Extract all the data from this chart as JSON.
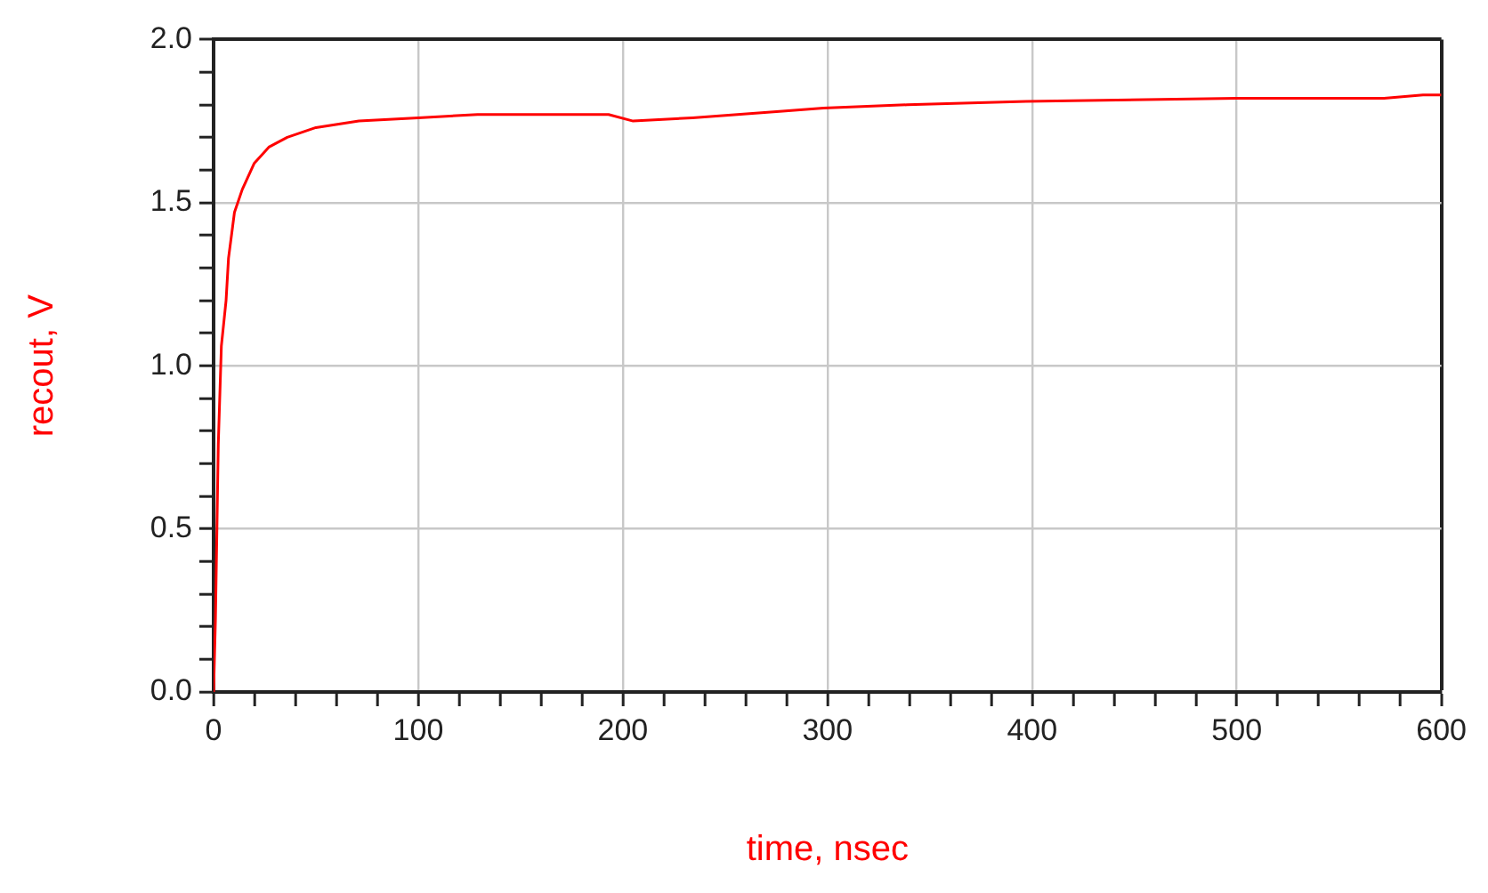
{
  "chart_data": {
    "type": "line",
    "xlabel": "time, nsec",
    "ylabel": "recout, V",
    "x": [
      0,
      0.9,
      2.3,
      3.8,
      6.1,
      7.3,
      10.2,
      14,
      19.8,
      27,
      36,
      50,
      71,
      100,
      129,
      150,
      193,
      205,
      234,
      278,
      298,
      339,
      397,
      500,
      572,
      591,
      600
    ],
    "series": [
      {
        "color": "#ff0000",
        "values": [
          0,
          0.22,
          0.76,
          1.06,
          1.2,
          1.33,
          1.47,
          1.54,
          1.62,
          1.67,
          1.7,
          1.73,
          1.75,
          1.76,
          1.77,
          1.77,
          1.77,
          1.75,
          1.76,
          1.78,
          1.79,
          1.8,
          1.81,
          1.82,
          1.82,
          1.83,
          1.83
        ]
      }
    ],
    "xlim": [
      0,
      600
    ],
    "ylim": [
      0,
      2
    ],
    "xticks": [
      0,
      {
        "value": 20,
        "label": null
      },
      {
        "value": 40,
        "label": null
      },
      {
        "value": 60,
        "label": null
      },
      {
        "value": 80,
        "label": null
      },
      100,
      {
        "value": 120,
        "label": null
      },
      {
        "value": 140,
        "label": null
      },
      {
        "value": 160,
        "label": null
      },
      {
        "value": 180,
        "label": null
      },
      200,
      {
        "value": 220,
        "label": null
      },
      {
        "value": 240,
        "label": null
      },
      {
        "value": 260,
        "label": null
      },
      {
        "value": 280,
        "label": null
      },
      300,
      {
        "value": 320,
        "label": null
      },
      {
        "value": 340,
        "label": null
      },
      {
        "value": 360,
        "label": null
      },
      {
        "value": 380,
        "label": null
      },
      400,
      {
        "value": 420,
        "label": null
      },
      {
        "value": 440,
        "label": null
      },
      {
        "value": 460,
        "label": null
      },
      {
        "value": 480,
        "label": null
      },
      500,
      {
        "value": 520,
        "label": null
      },
      {
        "value": 540,
        "label": null
      },
      {
        "value": 560,
        "label": null
      },
      {
        "value": 580,
        "label": null
      },
      600
    ],
    "yticks": [
      {
        "value": 0,
        "label": "0.0"
      },
      {
        "value": 0.1,
        "label": null
      },
      {
        "value": 0.2,
        "label": null
      },
      {
        "value": 0.3,
        "label": null
      },
      {
        "value": 0.4,
        "label": null
      },
      {
        "value": 0.5,
        "label": "0.5"
      },
      {
        "value": 0.6,
        "label": null
      },
      {
        "value": 0.7,
        "label": null
      },
      {
        "value": 0.8,
        "label": null
      },
      {
        "value": 0.9,
        "label": null
      },
      {
        "value": 1,
        "label": "1.0"
      },
      {
        "value": 1.1,
        "label": null
      },
      {
        "value": 1.2,
        "label": null
      },
      {
        "value": 1.3,
        "label": null
      },
      {
        "value": 1.4,
        "label": null
      },
      {
        "value": 1.5,
        "label": "1.5"
      },
      {
        "value": 1.6,
        "label": null
      },
      {
        "value": 1.7,
        "label": null
      },
      {
        "value": 1.8,
        "label": null
      },
      {
        "value": 1.9,
        "label": null
      },
      {
        "value": 2,
        "label": "2.0"
      }
    ],
    "grid": true,
    "legend": false,
    "marker": "none",
    "line_style": "solid"
  }
}
